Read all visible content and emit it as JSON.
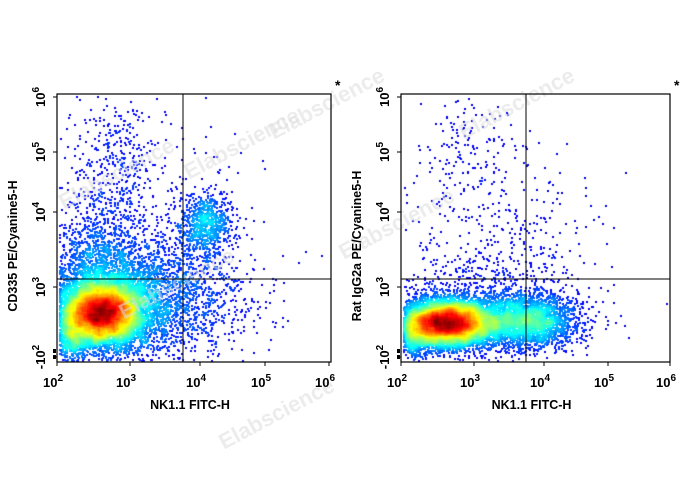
{
  "watermark": "Elabscience",
  "chart_data": [
    {
      "type": "scatter",
      "subtype": "flow-cytometry-density-dot-plot",
      "xlabel": "NK1.1 FITC-H",
      "ylabel": "CD335 PE/Cyanine5-H",
      "corner_mark": "*",
      "x_scale": "biexponential",
      "y_scale": "biexponential",
      "x_ticks": [
        "10^2",
        "10^3",
        "10^4",
        "10^5",
        "10^6"
      ],
      "y_ticks": [
        "-10^2",
        "10^3",
        "10^4",
        "10^5",
        "10^6"
      ],
      "quadrant_gate": {
        "x": 6000,
        "y": 1300
      },
      "populations": [
        {
          "name": "main",
          "center_x": 400,
          "center_y": 450,
          "density": "high"
        },
        {
          "name": "NK1.1+ CD335+",
          "center_x": 14000,
          "center_y": 7000,
          "density": "medium"
        }
      ]
    },
    {
      "type": "scatter",
      "subtype": "flow-cytometry-density-dot-plot",
      "xlabel": "NK1.1 FITC-H",
      "ylabel": "Rat IgG2a PE/Cyanine5-H",
      "corner_mark": "*",
      "x_scale": "biexponential",
      "y_scale": "biexponential",
      "x_ticks": [
        "10^2",
        "10^3",
        "10^4",
        "10^5",
        "10^6"
      ],
      "y_ticks": [
        "-10^2",
        "10^3",
        "10^4",
        "10^5",
        "10^6"
      ],
      "quadrant_gate": {
        "x": 5500,
        "y": 1300
      },
      "populations": [
        {
          "name": "main",
          "center_x": 400,
          "center_y": 300,
          "density": "high"
        },
        {
          "name": "NK1.1+",
          "center_x": 12000,
          "center_y": 300,
          "density": "medium"
        }
      ]
    }
  ]
}
